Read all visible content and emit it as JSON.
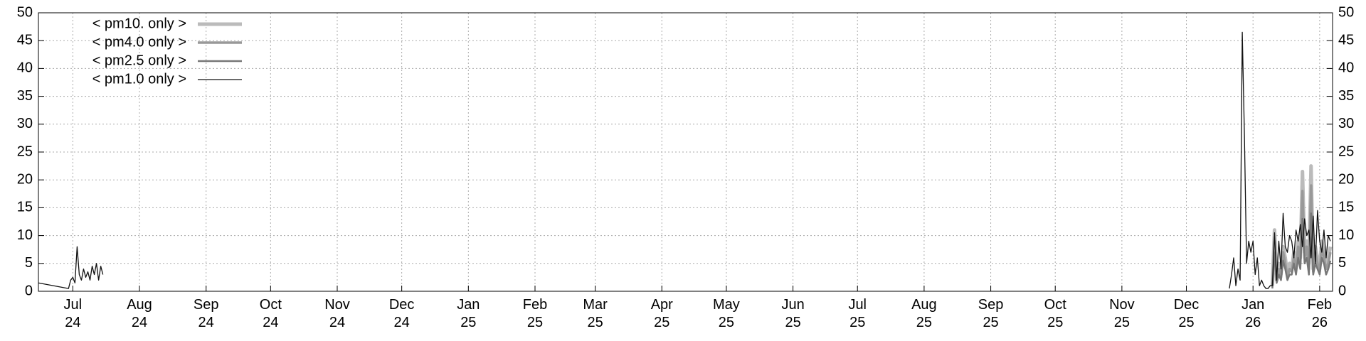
{
  "chart_data": {
    "type": "line",
    "x": [
      "2024-06-15",
      "2024-06-29",
      "2024-06-30",
      "2024-07-01",
      "2024-07-02",
      "2024-07-03",
      "2024-07-04",
      "2024-07-05",
      "2024-07-06",
      "2024-07-07",
      "2024-07-08",
      "2024-07-09",
      "2024-07-10",
      "2024-07-11",
      "2024-07-12",
      "2024-07-13",
      "2024-07-14",
      "2024-07-15",
      "2024-07-16",
      "2025-12-21",
      "2025-12-22",
      "2025-12-23",
      "2025-12-24",
      "2025-12-25",
      "2025-12-26",
      "2025-12-27",
      "2025-12-28",
      "2025-12-29",
      "2025-12-30",
      "2025-12-31",
      "2026-01-01",
      "2026-01-02",
      "2026-01-03",
      "2026-01-04",
      "2026-01-05",
      "2026-01-06",
      "2026-01-07",
      "2026-01-08",
      "2026-01-09",
      "2026-01-10",
      "2026-01-11",
      "2026-01-12",
      "2026-01-13",
      "2026-01-14",
      "2026-01-15",
      "2026-01-16",
      "2026-01-17",
      "2026-01-18",
      "2026-01-19",
      "2026-01-20",
      "2026-01-21",
      "2026-01-22",
      "2026-01-23",
      "2026-01-24",
      "2026-01-25",
      "2026-01-26",
      "2026-01-27",
      "2026-01-28",
      "2026-01-29",
      "2026-01-30",
      "2026-01-31",
      "2026-02-01",
      "2026-02-02",
      "2026-02-03",
      "2026-02-04",
      "2026-02-05",
      "2026-02-06"
    ],
    "series": [
      {
        "name": "< pm10. only >",
        "color": "#bbbbbb",
        "values": [
          null,
          null,
          null,
          null,
          null,
          null,
          null,
          null,
          null,
          null,
          null,
          null,
          null,
          null,
          null,
          null,
          null,
          null,
          null,
          null,
          null,
          null,
          null,
          null,
          null,
          null,
          null,
          null,
          null,
          null,
          null,
          null,
          null,
          null,
          null,
          null,
          null,
          null,
          null,
          1,
          11,
          2,
          5,
          3,
          8,
          6,
          3,
          5,
          4,
          7,
          5,
          9,
          6,
          21.5,
          7,
          9,
          5,
          22.5,
          4,
          8,
          6,
          4,
          9,
          7,
          5,
          6,
          8
        ]
      },
      {
        "name": "< pm4.0 only >",
        "color": "#999999",
        "values": [
          null,
          null,
          null,
          null,
          null,
          null,
          null,
          null,
          null,
          null,
          null,
          null,
          null,
          null,
          null,
          null,
          null,
          null,
          null,
          null,
          null,
          null,
          null,
          null,
          null,
          null,
          null,
          null,
          null,
          null,
          null,
          null,
          null,
          null,
          null,
          null,
          null,
          null,
          null,
          1,
          9,
          2,
          4,
          2.5,
          7,
          5,
          2.5,
          4,
          3.5,
          6,
          4,
          8,
          5,
          18,
          6,
          8,
          4,
          19,
          3.5,
          7,
          5,
          3.5,
          8,
          6,
          4,
          5,
          7
        ]
      },
      {
        "name": "< pm2.5 only >",
        "color": "#777777",
        "values": [
          null,
          null,
          null,
          null,
          null,
          null,
          null,
          null,
          null,
          null,
          null,
          null,
          null,
          null,
          null,
          null,
          null,
          null,
          null,
          null,
          null,
          null,
          null,
          null,
          null,
          null,
          null,
          null,
          null,
          null,
          null,
          null,
          null,
          null,
          null,
          null,
          null,
          null,
          null,
          0.5,
          7,
          1.5,
          3,
          2,
          5.5,
          4,
          2,
          3,
          3,
          5,
          3,
          6,
          4,
          13,
          5,
          6,
          3,
          14,
          3,
          5,
          4,
          3,
          6,
          5,
          3,
          4,
          5.5
        ]
      },
      {
        "name": "< pm1.0 only >",
        "color": "#111111",
        "values": [
          1.5,
          0.5,
          2,
          2.5,
          1.5,
          8,
          3,
          2,
          4,
          2.5,
          3.5,
          2,
          4.5,
          3,
          5,
          2,
          4.5,
          3,
          null,
          0.5,
          3,
          6,
          1,
          4,
          2,
          46.5,
          28,
          5,
          9,
          7,
          9,
          3,
          6,
          1,
          2,
          1,
          0.5,
          0.5,
          1,
          1,
          10.5,
          2,
          9,
          4,
          14,
          8,
          7,
          10,
          9,
          6,
          11,
          9,
          12,
          8,
          13,
          10,
          11,
          6,
          13.5,
          5,
          14.5,
          9,
          7,
          11,
          6,
          10,
          9
        ]
      }
    ],
    "xlim": [
      "2024-06-15",
      "2026-02-07"
    ],
    "xticks": [
      {
        "value": "2024-07",
        "label": "Jul 24"
      },
      {
        "value": "2024-08",
        "label": "Aug 24"
      },
      {
        "value": "2024-09",
        "label": "Sep 24"
      },
      {
        "value": "2024-10",
        "label": "Oct 24"
      },
      {
        "value": "2024-11",
        "label": "Nov 24"
      },
      {
        "value": "2024-12",
        "label": "Dec 24"
      },
      {
        "value": "2025-01",
        "label": "Jan 25"
      },
      {
        "value": "2025-02",
        "label": "Feb 25"
      },
      {
        "value": "2025-03",
        "label": "Mar 25"
      },
      {
        "value": "2025-04",
        "label": "Apr 25"
      },
      {
        "value": "2025-05",
        "label": "May 25"
      },
      {
        "value": "2025-06",
        "label": "Jun 25"
      },
      {
        "value": "2025-07",
        "label": "Jul 25"
      },
      {
        "value": "2025-08",
        "label": "Aug 25"
      },
      {
        "value": "2025-09",
        "label": "Sep 25"
      },
      {
        "value": "2025-10",
        "label": "Oct 25"
      },
      {
        "value": "2025-11",
        "label": "Nov 25"
      },
      {
        "value": "2025-12",
        "label": "Dec 25"
      },
      {
        "value": "2026-01",
        "label": "Jan 26"
      },
      {
        "value": "2026-02",
        "label": "Feb 26"
      }
    ],
    "ylim": [
      0,
      50
    ],
    "yticks": [
      0,
      5,
      10,
      15,
      20,
      25,
      30,
      35,
      40,
      45,
      50
    ],
    "grid": true,
    "legend": "upper-left"
  }
}
